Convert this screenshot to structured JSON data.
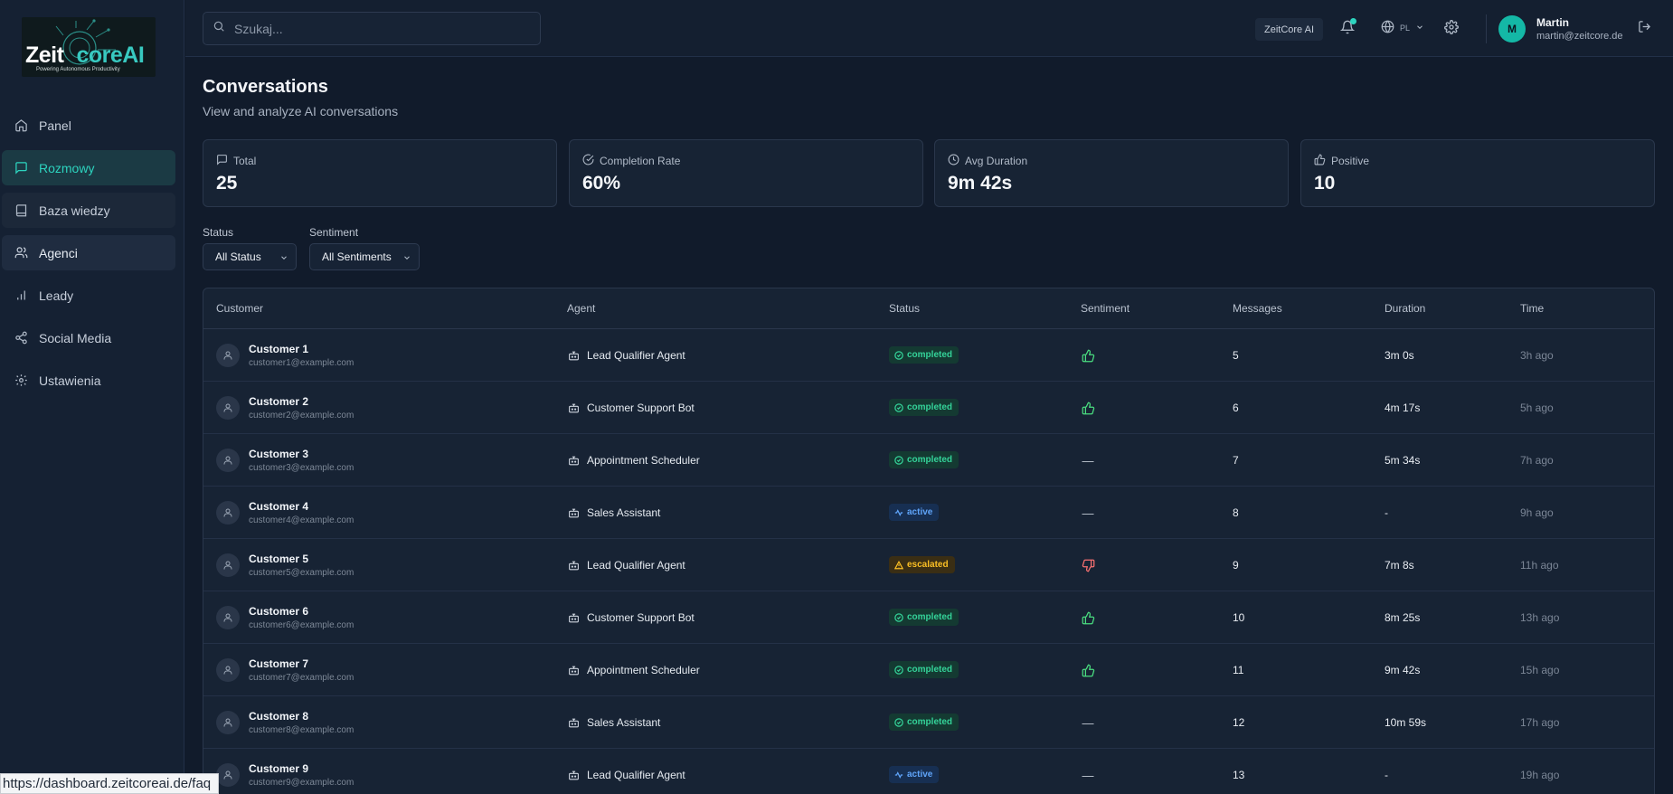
{
  "sidebar": {
    "logo": {
      "word_a": "Zeit",
      "word_b": "core",
      "word_c": "AI",
      "tagline": "Powering Autonomous Productivity"
    },
    "items": [
      {
        "label": "Panel",
        "icon": "home-icon"
      },
      {
        "label": "Rozmowy",
        "icon": "message-icon"
      },
      {
        "label": "Baza wiedzy",
        "icon": "book-icon"
      },
      {
        "label": "Agenci",
        "icon": "users-icon"
      },
      {
        "label": "Leady",
        "icon": "bar-chart-icon"
      },
      {
        "label": "Social Media",
        "icon": "share-icon"
      },
      {
        "label": "Ustawienia",
        "icon": "gear-icon"
      }
    ]
  },
  "header": {
    "search_placeholder": "Szukaj...",
    "org_badge": "ZeitCore AI",
    "lang": "PL",
    "user": {
      "initial": "M",
      "name": "Martin",
      "email": "martin@zeitcore.de"
    }
  },
  "main": {
    "title": "Conversations",
    "subtitle": "View and analyze AI conversations",
    "stats": [
      {
        "label": "Total",
        "value": "25",
        "icon": "message-icon"
      },
      {
        "label": "Completion Rate",
        "value": "60%",
        "icon": "check-circle-icon"
      },
      {
        "label": "Avg Duration",
        "value": "9m 42s",
        "icon": "clock-icon"
      },
      {
        "label": "Positive",
        "value": "10",
        "icon": "thumbs-up-icon"
      }
    ],
    "filters": {
      "status_label": "Status",
      "status_value": "All Status",
      "sentiment_label": "Sentiment",
      "sentiment_value": "All Sentiments"
    }
  },
  "table": {
    "columns": [
      "Customer",
      "Agent",
      "Status",
      "Sentiment",
      "Messages",
      "Duration",
      "Time"
    ],
    "rows": [
      {
        "name": "Customer 1",
        "email": "customer1@example.com",
        "agent": "Lead Qualifier Agent",
        "status": "completed",
        "sentiment": "positive",
        "messages": "5",
        "duration": "3m 0s",
        "time": "3h ago"
      },
      {
        "name": "Customer 2",
        "email": "customer2@example.com",
        "agent": "Customer Support Bot",
        "status": "completed",
        "sentiment": "positive",
        "messages": "6",
        "duration": "4m 17s",
        "time": "5h ago"
      },
      {
        "name": "Customer 3",
        "email": "customer3@example.com",
        "agent": "Appointment Scheduler",
        "status": "completed",
        "sentiment": "neutral",
        "messages": "7",
        "duration": "5m 34s",
        "time": "7h ago"
      },
      {
        "name": "Customer 4",
        "email": "customer4@example.com",
        "agent": "Sales Assistant",
        "status": "active",
        "sentiment": "neutral",
        "messages": "8",
        "duration": "-",
        "time": "9h ago"
      },
      {
        "name": "Customer 5",
        "email": "customer5@example.com",
        "agent": "Lead Qualifier Agent",
        "status": "escalated",
        "sentiment": "negative",
        "messages": "9",
        "duration": "7m 8s",
        "time": "11h ago"
      },
      {
        "name": "Customer 6",
        "email": "customer6@example.com",
        "agent": "Customer Support Bot",
        "status": "completed",
        "sentiment": "positive",
        "messages": "10",
        "duration": "8m 25s",
        "time": "13h ago"
      },
      {
        "name": "Customer 7",
        "email": "customer7@example.com",
        "agent": "Appointment Scheduler",
        "status": "completed",
        "sentiment": "positive",
        "messages": "11",
        "duration": "9m 42s",
        "time": "15h ago"
      },
      {
        "name": "Customer 8",
        "email": "customer8@example.com",
        "agent": "Sales Assistant",
        "status": "completed",
        "sentiment": "neutral",
        "messages": "12",
        "duration": "10m 59s",
        "time": "17h ago"
      },
      {
        "name": "Customer 9",
        "email": "customer9@example.com",
        "agent": "Lead Qualifier Agent",
        "status": "active",
        "sentiment": "neutral",
        "messages": "13",
        "duration": "-",
        "time": "19h ago"
      }
    ]
  },
  "statusbar": {
    "url": "https://dashboard.zeitcoreai.de/faq"
  },
  "colors": {
    "accent": "#2dd4bf",
    "completed": "#34d399",
    "active": "#60a5fa",
    "escalated": "#fbbf24",
    "negative": "#f87171"
  }
}
